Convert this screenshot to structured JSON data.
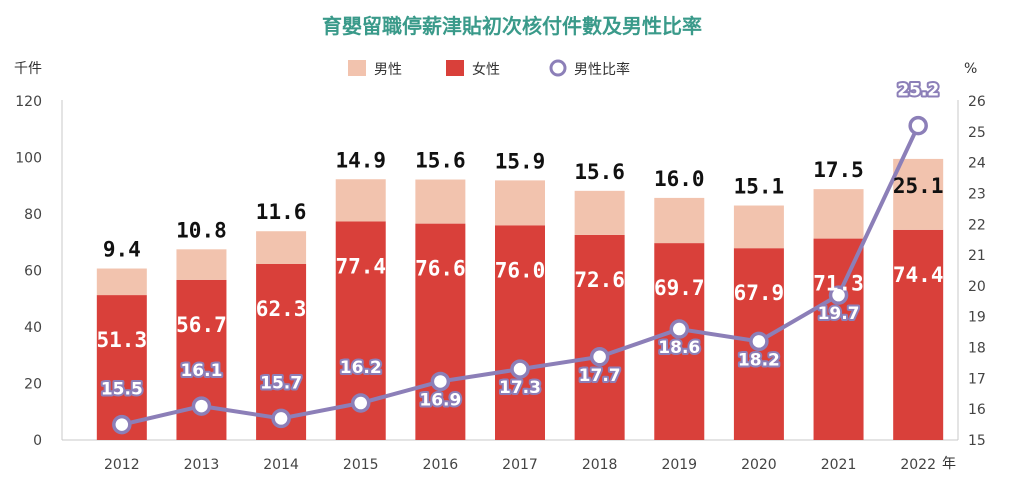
{
  "chart_data": {
    "type": "bar",
    "title": "育嬰留職停薪津貼初次核付件數及男性比率",
    "x_unit": "年",
    "y_left_unit": "千件",
    "y_right_unit": "%",
    "categories": [
      "2012",
      "2013",
      "2014",
      "2015",
      "2016",
      "2017",
      "2018",
      "2019",
      "2020",
      "2021",
      "2022"
    ],
    "stacked": true,
    "series": [
      {
        "name": "女性",
        "axis": "left",
        "values": [
          51.3,
          56.7,
          62.3,
          77.4,
          76.6,
          76.0,
          72.6,
          69.7,
          67.9,
          71.3,
          74.4
        ]
      },
      {
        "name": "男性",
        "axis": "left",
        "values": [
          9.4,
          10.8,
          11.6,
          14.9,
          15.6,
          15.9,
          15.6,
          16.0,
          15.1,
          17.5,
          25.1
        ]
      },
      {
        "name": "男性比率",
        "axis": "right",
        "type": "line",
        "values": [
          15.5,
          16.1,
          15.7,
          16.2,
          16.9,
          17.3,
          17.7,
          18.6,
          18.2,
          19.7,
          25.2
        ]
      }
    ],
    "ylim_left": [
      0,
      120
    ],
    "yticks_left": [
      0,
      20,
      40,
      60,
      80,
      100,
      120
    ],
    "ylim_right": [
      15,
      26
    ],
    "yticks_right": [
      15,
      16,
      17,
      18,
      19,
      20,
      21,
      22,
      23,
      24,
      25,
      26
    ],
    "grid": false,
    "legend_position": "top-center",
    "colors": {
      "female": "#d9403a",
      "male": "#f2c3ae",
      "ratio": "#8c7fb8",
      "title": "#3a9a8a"
    }
  }
}
